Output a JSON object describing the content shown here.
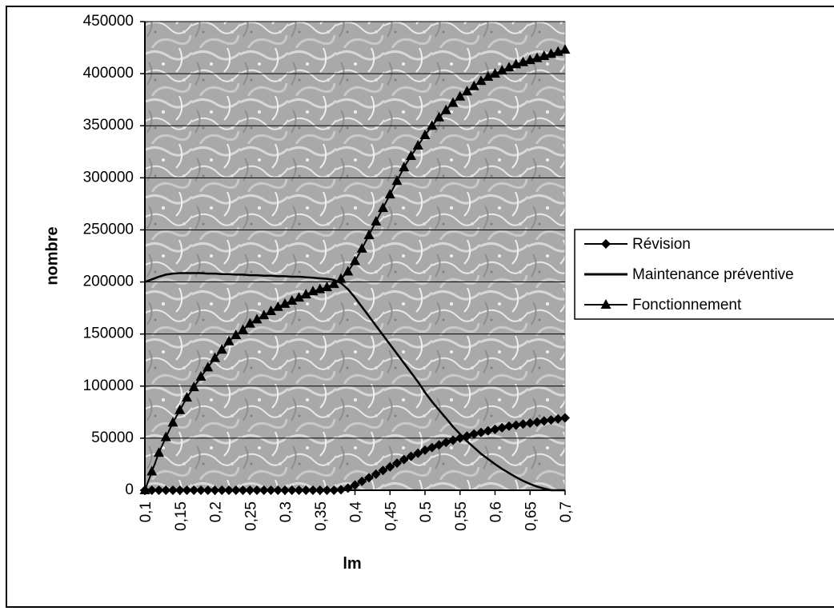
{
  "chart_data": {
    "type": "line",
    "title": "",
    "xlabel": "lm",
    "ylabel": "nombre",
    "xlim": [
      0.1,
      0.7
    ],
    "ylim": [
      0,
      450000
    ],
    "grid": true,
    "legend_position": "right",
    "x_ticks": [
      "0,1",
      "0,15",
      "0,2",
      "0,25",
      "0,3",
      "0,35",
      "0,4",
      "0,45",
      "0,5",
      "0,55",
      "0,6",
      "0,65",
      "0,7"
    ],
    "y_ticks": [
      "0",
      "50000",
      "100000",
      "150000",
      "200000",
      "250000",
      "300000",
      "350000",
      "400000",
      "450000"
    ],
    "series": [
      {
        "name": "Révision",
        "marker": "diamond",
        "x": [
          0.1,
          0.11,
          0.12,
          0.13,
          0.14,
          0.15,
          0.16,
          0.17,
          0.18,
          0.19,
          0.2,
          0.21,
          0.22,
          0.23,
          0.24,
          0.25,
          0.26,
          0.27,
          0.28,
          0.29,
          0.3,
          0.31,
          0.32,
          0.33,
          0.34,
          0.35,
          0.36,
          0.37,
          0.38,
          0.39,
          0.4,
          0.41,
          0.42,
          0.43,
          0.44,
          0.45,
          0.46,
          0.47,
          0.48,
          0.49,
          0.5,
          0.51,
          0.52,
          0.53,
          0.54,
          0.55,
          0.56,
          0.57,
          0.58,
          0.59,
          0.6,
          0.61,
          0.62,
          0.63,
          0.64,
          0.65,
          0.66,
          0.67,
          0.68,
          0.69,
          0.7
        ],
        "values": [
          0,
          0,
          0,
          0,
          0,
          0,
          0,
          0,
          0,
          0,
          0,
          0,
          0,
          0,
          0,
          0,
          0,
          0,
          0,
          0,
          0,
          0,
          0,
          0,
          0,
          0,
          0,
          0,
          500,
          2000,
          5000,
          8500,
          12000,
          15500,
          19000,
          22500,
          26000,
          29500,
          32500,
          35500,
          38500,
          41000,
          43500,
          46000,
          48000,
          50000,
          52000,
          54000,
          55500,
          57000,
          58500,
          60000,
          61500,
          62500,
          63500,
          64500,
          65500,
          66500,
          67500,
          68500,
          69500
        ]
      },
      {
        "name": "Maintenance préventive",
        "marker": "none",
        "x": [
          0.1,
          0.11,
          0.12,
          0.13,
          0.14,
          0.15,
          0.16,
          0.17,
          0.18,
          0.19,
          0.2,
          0.21,
          0.22,
          0.23,
          0.24,
          0.25,
          0.26,
          0.27,
          0.28,
          0.29,
          0.3,
          0.31,
          0.32,
          0.33,
          0.34,
          0.35,
          0.36,
          0.37,
          0.38,
          0.39,
          0.4,
          0.41,
          0.42,
          0.43,
          0.44,
          0.45,
          0.46,
          0.47,
          0.48,
          0.49,
          0.5,
          0.51,
          0.52,
          0.53,
          0.54,
          0.55,
          0.56,
          0.57,
          0.58,
          0.59,
          0.6,
          0.61,
          0.62,
          0.63,
          0.64,
          0.65,
          0.66,
          0.67,
          0.68,
          0.69,
          0.7
        ],
        "values": [
          200000,
          202500,
          205000,
          207000,
          208000,
          208500,
          208500,
          208500,
          208500,
          208000,
          208000,
          207500,
          207500,
          207000,
          207000,
          206500,
          206500,
          206000,
          206000,
          205500,
          205500,
          205000,
          205000,
          204500,
          204000,
          203500,
          203000,
          202000,
          199000,
          193000,
          185000,
          176000,
          167000,
          158000,
          149000,
          140000,
          131000,
          122000,
          113000,
          104000,
          94000,
          85000,
          77000,
          69000,
          61000,
          54000,
          47000,
          41000,
          35000,
          30000,
          25000,
          20500,
          16500,
          12500,
          9000,
          6000,
          3500,
          1500,
          0,
          0,
          0
        ]
      },
      {
        "name": "Fonctionnement",
        "marker": "triangle",
        "x": [
          0.1,
          0.11,
          0.12,
          0.13,
          0.14,
          0.15,
          0.16,
          0.17,
          0.18,
          0.19,
          0.2,
          0.21,
          0.22,
          0.23,
          0.24,
          0.25,
          0.26,
          0.27,
          0.28,
          0.29,
          0.3,
          0.31,
          0.32,
          0.33,
          0.34,
          0.35,
          0.36,
          0.37,
          0.38,
          0.39,
          0.4,
          0.41,
          0.42,
          0.43,
          0.44,
          0.45,
          0.46,
          0.47,
          0.48,
          0.49,
          0.5,
          0.51,
          0.52,
          0.53,
          0.54,
          0.55,
          0.56,
          0.57,
          0.58,
          0.59,
          0.6,
          0.61,
          0.62,
          0.63,
          0.64,
          0.65,
          0.66,
          0.67,
          0.68,
          0.69,
          0.7
        ],
        "values": [
          0,
          18000,
          36000,
          51000,
          65000,
          77000,
          89000,
          99000,
          109000,
          118000,
          127000,
          135000,
          143000,
          149000,
          154000,
          160000,
          164000,
          168000,
          172000,
          176000,
          179000,
          182000,
          185000,
          188000,
          191000,
          193000,
          195000,
          198000,
          203000,
          210000,
          220000,
          232000,
          245000,
          258000,
          271000,
          284000,
          297000,
          310000,
          321000,
          331000,
          341000,
          350000,
          358000,
          365000,
          372000,
          378000,
          383000,
          388000,
          393000,
          397000,
          400000,
          403000,
          406000,
          409000,
          411000,
          413000,
          415000,
          417000,
          419000,
          421000,
          423000
        ]
      }
    ]
  }
}
